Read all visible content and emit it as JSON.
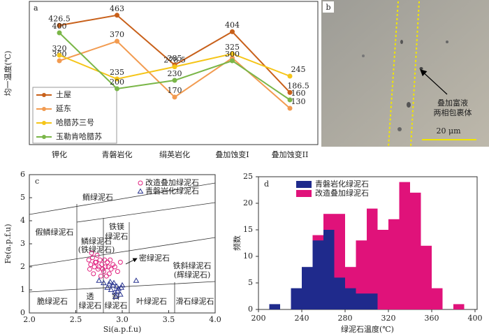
{
  "chart_data": [
    {
      "type": "line",
      "panel_label": "a",
      "ylabel": "均一温度(℃)",
      "categories": [
        "钾化",
        "青磐岩化",
        "绢英岩化",
        "叠加蚀变I",
        "叠加蚀变II"
      ],
      "ylim": [
        0,
        500
      ],
      "series": [
        {
          "name": "土屋",
          "color": "#c8601a",
          "values": [
            426.5,
            463,
            285,
            404,
            186.5
          ],
          "value_labels": [
            "426.5",
            "463",
            "285",
            "404",
            "186.5"
          ]
        },
        {
          "name": "延东",
          "color": "#f29b50",
          "values": [
            300,
            370,
            170,
            310,
            130
          ],
          "value_labels": [
            "300",
            "370",
            "170",
            null,
            "130"
          ]
        },
        {
          "name": "哈腊苏三号",
          "color": "#f5c518",
          "values": [
            320,
            235,
            278.5,
            325,
            245
          ],
          "value_labels": [
            "320",
            "235",
            "278.5",
            "325",
            "245"
          ]
        },
        {
          "name": "玉勒肯哈腊苏",
          "color": "#7ab648",
          "values": [
            400,
            200,
            230,
            300,
            160
          ],
          "value_labels": [
            "400",
            "200",
            "230",
            "300",
            "160"
          ]
        }
      ]
    },
    {
      "type": "scatter",
      "panel_label": "c",
      "xlabel": "Si(a.p.f.u)",
      "ylabel": "Fe(a.p.f.u)",
      "xlim": [
        2.0,
        4.0
      ],
      "ylim": [
        0,
        6
      ],
      "xticks": [
        {
          "value": 2,
          "label": "2.0"
        },
        {
          "value": 2.5,
          "label": "2.5"
        },
        {
          "value": 3,
          "label": "3.0"
        },
        {
          "value": 3.5,
          "label": "3.5"
        },
        {
          "value": 4,
          "label": "4.0"
        }
      ],
      "yticks": [
        0,
        1,
        2,
        3,
        4,
        5,
        6
      ],
      "annotations": [
        "假鳞绿泥石",
        "鲕绿泥石",
        "铁镁",
        "绿泥石",
        "鳞绿泥石",
        "(铁绿泥石)",
        "密绿泥石",
        "铁斜绿泥石",
        "(辉绿泥石)",
        "脆绿泥石",
        "透",
        "绿泥石",
        "斜",
        "绿泥石",
        "叶绿泥石",
        "滑石绿泥石"
      ],
      "series": [
        {
          "name": "改造叠加绿泥石",
          "marker": "circle",
          "color": "#e0207f",
          "x": [
            2.64,
            2.66,
            2.68,
            2.7,
            2.72,
            2.74,
            2.76,
            2.78,
            2.8,
            2.82,
            2.84,
            2.86,
            2.88,
            2.9,
            2.65,
            2.69,
            2.73,
            2.77,
            2.81,
            2.85,
            2.67,
            2.71,
            2.75,
            2.79,
            2.83,
            2.87,
            2.92,
            2.95,
            2.98
          ],
          "values": [
            2.3,
            2.1,
            2.4,
            2.0,
            2.2,
            1.9,
            2.3,
            2.1,
            1.8,
            2.0,
            2.2,
            1.7,
            1.9,
            2.1,
            1.9,
            1.7,
            2.5,
            1.6,
            2.3,
            2.0,
            2.6,
            2.2,
            2.0,
            1.9,
            1.6,
            2.3,
            2.0,
            1.8,
            2.2
          ]
        },
        {
          "name": "青磐岩化绿泥石",
          "marker": "triangle",
          "color": "#2a3590",
          "x": [
            2.75,
            2.8,
            2.84,
            2.86,
            2.88,
            2.9,
            2.92,
            2.94,
            2.96,
            2.98,
            3.0,
            2.87,
            2.91,
            2.95,
            2.99,
            2.93,
            3.15
          ],
          "values": [
            1.4,
            1.3,
            1.1,
            1.25,
            1.0,
            1.2,
            0.9,
            1.15,
            1.05,
            0.8,
            1.2,
            1.35,
            1.3,
            0.95,
            1.1,
            0.7,
            1.4
          ]
        }
      ]
    },
    {
      "type": "histogram",
      "panel_label": "d",
      "xlabel": "绿泥石温度(℃)",
      "ylabel": "频数",
      "xlim": [
        200,
        400
      ],
      "ylim": [
        0,
        25
      ],
      "xticks": [
        200,
        240,
        280,
        320,
        360,
        400
      ],
      "yticks": [
        0,
        5,
        10,
        15,
        20,
        25
      ],
      "bins": [
        210,
        220,
        230,
        240,
        250,
        260,
        270,
        280,
        290,
        300,
        310,
        320,
        330,
        340,
        350,
        360,
        370,
        380,
        390
      ],
      "series": [
        {
          "name": "青磐岩化绿泥石",
          "color": "#1f2a8c",
          "values": [
            1,
            0,
            4,
            8,
            13,
            15,
            6,
            4,
            3,
            3,
            0,
            0,
            0,
            0,
            0,
            0,
            0,
            0
          ]
        },
        {
          "name": "改造叠加绿泥石",
          "color": "#e0127a",
          "values": [
            0,
            0,
            0,
            0,
            14,
            18,
            18,
            8,
            13,
            19,
            15,
            17,
            24,
            22,
            12,
            4,
            0,
            1
          ]
        }
      ]
    }
  ],
  "photo": {
    "panel_label": "b",
    "annotation": [
      "叠加富液",
      "两相包裹体"
    ],
    "scale_bar": "20 μm"
  }
}
